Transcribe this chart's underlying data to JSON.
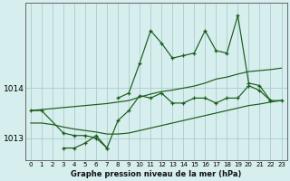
{
  "title": "Graphe pression niveau de la mer (hPa)",
  "background_color": "#d6eeee",
  "grid_color": "#aacccc",
  "line_color": "#1a5c1a",
  "hours": [
    0,
    1,
    2,
    3,
    4,
    5,
    6,
    7,
    8,
    9,
    10,
    11,
    12,
    13,
    14,
    15,
    16,
    17,
    18,
    19,
    20,
    21,
    22,
    23
  ],
  "jagged_top": [
    null,
    null,
    null,
    null,
    null,
    null,
    null,
    null,
    1013.8,
    1013.9,
    1014.5,
    1015.15,
    1014.9,
    1014.6,
    1014.65,
    1014.7,
    1015.15,
    1014.75,
    1014.7,
    1015.45,
    1014.1,
    1014.05,
    1013.75,
    null
  ],
  "jagged_mid": [
    1013.55,
    1013.55,
    null,
    1013.1,
    1013.05,
    1013.05,
    1013.0,
    1012.8,
    1013.35,
    1013.55,
    1013.85,
    1013.8,
    1013.9,
    1013.7,
    1013.7,
    1013.8,
    1013.8,
    1013.7,
    1013.8,
    1013.8,
    1014.05,
    1013.95,
    1013.75,
    1013.75
  ],
  "jagged_bot": [
    null,
    null,
    null,
    1012.8,
    1012.8,
    1012.9,
    1013.05,
    1012.8,
    null,
    null,
    null,
    null,
    null,
    null,
    null,
    null,
    null,
    null,
    null,
    null,
    null,
    null,
    null,
    null
  ],
  "trend_upper": [
    1013.55,
    1013.57,
    1013.59,
    1013.61,
    1013.63,
    1013.65,
    1013.67,
    1013.69,
    1013.72,
    1013.75,
    1013.82,
    1013.88,
    1013.93,
    1013.96,
    1014.0,
    1014.04,
    1014.1,
    1014.18,
    1014.22,
    1014.28,
    1014.33,
    1014.35,
    1014.37,
    1014.4
  ],
  "trend_lower": [
    1013.3,
    1013.3,
    1013.27,
    1013.22,
    1013.18,
    1013.15,
    1013.12,
    1013.08,
    1013.08,
    1013.1,
    1013.15,
    1013.2,
    1013.25,
    1013.3,
    1013.35,
    1013.4,
    1013.45,
    1013.5,
    1013.55,
    1013.6,
    1013.65,
    1013.68,
    1013.72,
    1013.75
  ],
  "ylim": [
    1012.55,
    1015.7
  ],
  "yticks": [
    1013,
    1014
  ],
  "xlim": [
    -0.5,
    23.5
  ]
}
